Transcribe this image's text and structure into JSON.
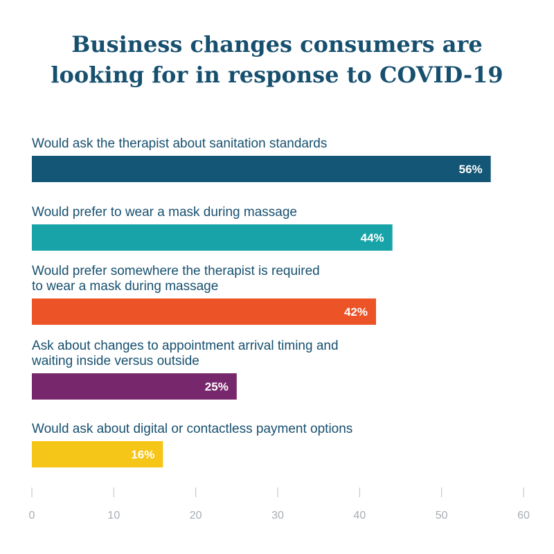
{
  "chart_data": {
    "type": "bar",
    "orientation": "horizontal",
    "title_lines": [
      "Business changes consumers are",
      "looking for in response to COVID-19"
    ],
    "categories": [
      [
        "Would ask the therapist about sanitation standards"
      ],
      [
        "Would prefer to wear a mask during massage"
      ],
      [
        "Would prefer somewhere the therapist is required",
        "to wear a mask during massage"
      ],
      [
        "Ask about changes to appointment arrival timing and",
        "waiting inside versus outside"
      ],
      [
        "Would ask about digital or contactless payment options"
      ]
    ],
    "values": [
      56,
      44,
      42,
      25,
      16
    ],
    "value_labels": [
      "56%",
      "44%",
      "42%",
      "25%",
      "16%"
    ],
    "colors": [
      "#135675",
      "#17a3a8",
      "#ec5327",
      "#77276b",
      "#f5c517"
    ],
    "xlim": [
      0,
      60
    ],
    "xticks": [
      0,
      10,
      20,
      30,
      40,
      50,
      60
    ],
    "grid": false,
    "legend": "none"
  }
}
